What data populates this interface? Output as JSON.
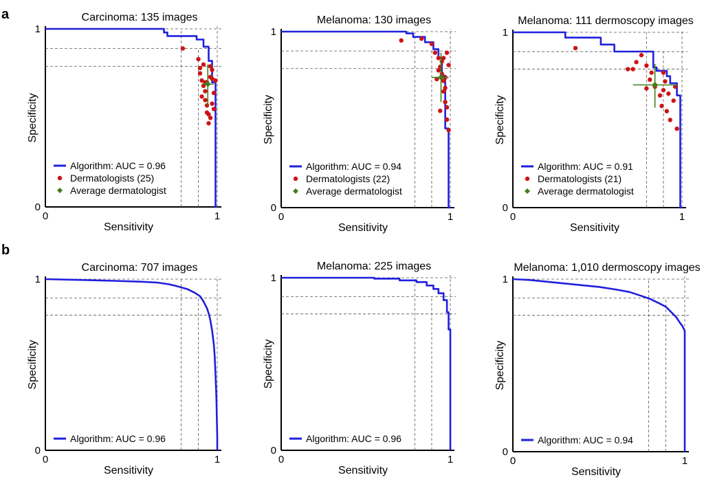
{
  "panel_labels": [
    "a",
    "b"
  ],
  "colors": {
    "algorithm": "#1f1fdd",
    "dermatologist": "#cc1414",
    "average": "#3f7f1f",
    "reference": "#555555"
  },
  "chart_data": [
    {
      "type": "line",
      "panel": "a",
      "title": "Carcinoma: 135 images",
      "xlabel": "Sensitivity",
      "ylabel": "Specificity",
      "xlim": [
        0,
        1
      ],
      "ylim": [
        0,
        1
      ],
      "xticks": [
        "0",
        "1"
      ],
      "yticks": [
        "0",
        "1"
      ],
      "ref_x": [
        0.79,
        0.89,
        1.0
      ],
      "ref_y": [
        0.79,
        0.89,
        1.0
      ],
      "algorithm": {
        "legend": "Algorithm: AUC = 0.96",
        "x": [
          0.0,
          0.69,
          0.69,
          0.71,
          0.71,
          0.88,
          0.88,
          0.92,
          0.92,
          0.95,
          0.95,
          0.97,
          0.97,
          0.99,
          0.99,
          1.0,
          1.0
        ],
        "y": [
          1.0,
          1.0,
          0.98,
          0.98,
          0.96,
          0.96,
          0.94,
          0.94,
          0.9,
          0.9,
          0.82,
          0.82,
          0.7,
          0.7,
          0.0,
          0.0,
          0.0
        ]
      },
      "dermatologists": {
        "legend": "Dermatologists (25)",
        "x": [
          0.8,
          0.89,
          0.9,
          0.9,
          0.91,
          0.92,
          0.93,
          0.93,
          0.94,
          0.94,
          0.95,
          0.95,
          0.96,
          0.96,
          0.97,
          0.97,
          0.98,
          0.98,
          0.91,
          0.92,
          0.94,
          0.96,
          0.97,
          0.93,
          0.99
        ],
        "y": [
          0.89,
          0.83,
          0.78,
          0.75,
          0.71,
          0.68,
          0.65,
          0.6,
          0.57,
          0.53,
          0.52,
          0.47,
          0.5,
          0.73,
          0.77,
          0.72,
          0.64,
          0.55,
          0.62,
          0.8,
          0.7,
          0.79,
          0.58,
          0.7,
          0.71
        ]
      },
      "average": {
        "legend": "Average dermatologist",
        "x": 0.945,
        "y": 0.69,
        "x_err": [
          0.91,
          0.98
        ],
        "y_err": [
          0.57,
          0.8
        ]
      }
    },
    {
      "type": "line",
      "panel": "a",
      "title": "Melanoma: 130 images",
      "xlabel": "Sensitivity",
      "ylabel": "Specificity",
      "xlim": [
        0,
        1
      ],
      "ylim": [
        0,
        1
      ],
      "xticks": [
        "0",
        "1"
      ],
      "yticks": [
        "0",
        "1"
      ],
      "ref_x": [
        0.79,
        0.89,
        1.0
      ],
      "ref_y": [
        0.79,
        0.89,
        1.0
      ],
      "algorithm": {
        "legend": "Algorithm: AUC = 0.94",
        "x": [
          0.0,
          0.74,
          0.74,
          0.78,
          0.78,
          0.85,
          0.85,
          0.9,
          0.9,
          0.93,
          0.93,
          0.95,
          0.95,
          0.97,
          0.97,
          0.99,
          0.99,
          1.0
        ],
        "y": [
          1.0,
          1.0,
          0.99,
          0.99,
          0.97,
          0.97,
          0.94,
          0.94,
          0.9,
          0.9,
          0.85,
          0.85,
          0.75,
          0.75,
          0.45,
          0.45,
          0.0,
          0.0
        ]
      },
      "dermatologists": {
        "legend": "Dermatologists (22)",
        "x": [
          0.71,
          0.83,
          0.89,
          0.91,
          0.93,
          0.94,
          0.95,
          0.96,
          0.97,
          0.97,
          0.98,
          0.98,
          0.99,
          0.96,
          0.95,
          0.93,
          0.92,
          0.98,
          0.99,
          0.97,
          0.96,
          0.94
        ],
        "y": [
          0.95,
          0.96,
          0.93,
          0.88,
          0.85,
          0.8,
          0.76,
          0.72,
          0.68,
          0.6,
          0.57,
          0.5,
          0.44,
          0.85,
          0.83,
          0.78,
          0.73,
          0.88,
          0.81,
          0.74,
          0.66,
          0.55
        ]
      },
      "average": {
        "legend": "Average dermatologist",
        "x": 0.945,
        "y": 0.74,
        "x_err": [
          0.89,
          0.99
        ],
        "y_err": [
          0.6,
          0.88
        ]
      }
    },
    {
      "type": "line",
      "panel": "a",
      "title": "Melanoma: 111 dermoscopy images",
      "xlabel": "Sensitivity",
      "ylabel": "Specificity",
      "xlim": [
        0,
        1
      ],
      "ylim": [
        0,
        1
      ],
      "xticks": [
        "0",
        "1"
      ],
      "yticks": [
        "0",
        "1"
      ],
      "ref_x": [
        0.79,
        0.89,
        1.0
      ],
      "ref_y": [
        0.79,
        0.89,
        1.0
      ],
      "algorithm": {
        "legend": "Algorithm: AUC = 0.91",
        "x": [
          0.0,
          0.31,
          0.31,
          0.52,
          0.52,
          0.6,
          0.6,
          0.83,
          0.83,
          0.85,
          0.85,
          0.91,
          0.91,
          0.93,
          0.93,
          0.97,
          0.97,
          0.99,
          0.99,
          1.0
        ],
        "y": [
          1.0,
          1.0,
          0.97,
          0.97,
          0.93,
          0.93,
          0.89,
          0.89,
          0.8,
          0.8,
          0.78,
          0.78,
          0.75,
          0.75,
          0.71,
          0.71,
          0.64,
          0.64,
          0.0,
          0.0
        ]
      },
      "dermatologists": {
        "legend": "Dermatologists (21)",
        "x": [
          0.37,
          0.68,
          0.71,
          0.73,
          0.76,
          0.79,
          0.81,
          0.82,
          0.84,
          0.87,
          0.88,
          0.89,
          0.9,
          0.91,
          0.92,
          0.93,
          0.95,
          0.96,
          0.97,
          0.79,
          0.89
        ],
        "y": [
          0.91,
          0.79,
          0.79,
          0.83,
          0.87,
          0.81,
          0.73,
          0.77,
          0.69,
          0.64,
          0.58,
          0.67,
          0.72,
          0.55,
          0.65,
          0.5,
          0.61,
          0.69,
          0.45,
          0.68,
          0.77
        ]
      },
      "average": {
        "legend": "Average dermatologist",
        "x": 0.84,
        "y": 0.7,
        "x_err": [
          0.71,
          0.97
        ],
        "y_err": [
          0.57,
          0.82
        ]
      }
    },
    {
      "type": "line",
      "panel": "b",
      "title": "Carcinoma: 707 images",
      "xlabel": "Sensitivity",
      "ylabel": "Specificity",
      "xlim": [
        0,
        1
      ],
      "ylim": [
        0,
        1
      ],
      "xticks": [
        "0",
        "1"
      ],
      "yticks": [
        "0",
        "1"
      ],
      "ref_x": [
        0.79,
        0.89,
        1.0
      ],
      "ref_y": [
        0.79,
        0.89,
        1.0
      ],
      "algorithm": {
        "legend": "Algorithm: AUC = 0.96",
        "x": [
          0.0,
          0.2,
          0.4,
          0.55,
          0.65,
          0.72,
          0.78,
          0.83,
          0.87,
          0.9,
          0.92,
          0.94,
          0.95,
          0.96,
          0.97,
          0.98,
          0.985,
          0.99,
          0.995,
          1.0,
          1.0
        ],
        "y": [
          1.0,
          0.995,
          0.99,
          0.985,
          0.98,
          0.97,
          0.955,
          0.94,
          0.92,
          0.9,
          0.87,
          0.83,
          0.8,
          0.76,
          0.7,
          0.62,
          0.55,
          0.44,
          0.3,
          0.08,
          0.0
        ]
      }
    },
    {
      "type": "line",
      "panel": "b",
      "title": "Melanoma: 225 images",
      "xlabel": "Sensitivity",
      "ylabel": "Specificity",
      "xlim": [
        0,
        1
      ],
      "ylim": [
        0,
        1
      ],
      "xticks": [
        "0",
        "1"
      ],
      "yticks": [
        "0",
        "1"
      ],
      "ref_x": [
        0.79,
        0.89,
        1.0
      ],
      "ref_y": [
        0.79,
        0.89,
        1.0
      ],
      "algorithm": {
        "legend": "Algorithm: AUC = 0.96",
        "x": [
          0.0,
          0.55,
          0.55,
          0.7,
          0.7,
          0.8,
          0.8,
          0.86,
          0.86,
          0.9,
          0.9,
          0.93,
          0.93,
          0.96,
          0.96,
          0.98,
          0.98,
          0.99,
          0.99,
          1.0,
          1.0
        ],
        "y": [
          1.0,
          1.0,
          0.995,
          0.995,
          0.985,
          0.985,
          0.975,
          0.975,
          0.955,
          0.955,
          0.935,
          0.935,
          0.91,
          0.91,
          0.87,
          0.87,
          0.8,
          0.8,
          0.7,
          0.7,
          0.0
        ]
      }
    },
    {
      "type": "line",
      "panel": "b",
      "title": "Melanoma: 1,010 dermoscopy images",
      "xlabel": "Sensitivity",
      "ylabel": "Specificity",
      "xlim": [
        0,
        1
      ],
      "ylim": [
        0,
        1
      ],
      "xticks": [
        "0",
        "1"
      ],
      "yticks": [
        "0",
        "1"
      ],
      "ref_x": [
        0.79,
        0.89,
        1.0
      ],
      "ref_y": [
        0.79,
        0.89,
        1.0
      ],
      "algorithm": {
        "legend": "Algorithm: AUC = 0.94",
        "x": [
          0.0,
          0.1,
          0.2,
          0.3,
          0.4,
          0.5,
          0.6,
          0.68,
          0.74,
          0.8,
          0.85,
          0.89,
          0.92,
          0.95,
          0.97,
          0.985,
          0.995,
          1.0,
          1.0
        ],
        "y": [
          1.0,
          0.995,
          0.985,
          0.975,
          0.965,
          0.955,
          0.94,
          0.925,
          0.905,
          0.885,
          0.86,
          0.84,
          0.81,
          0.78,
          0.75,
          0.73,
          0.71,
          0.7,
          0.0
        ]
      }
    }
  ]
}
